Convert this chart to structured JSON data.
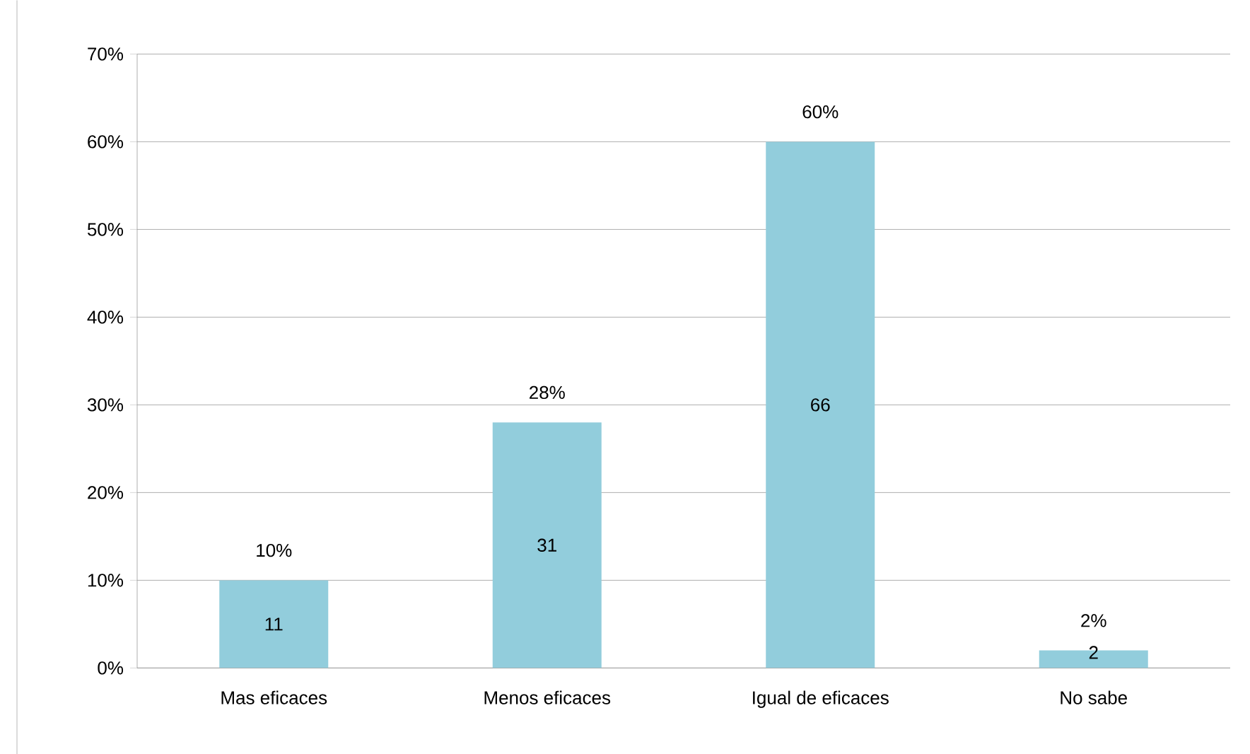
{
  "chart_data": {
    "type": "bar",
    "categories": [
      "Mas eficaces",
      "Menos eficaces",
      "Igual de eficaces",
      "No sabe"
    ],
    "values": [
      10,
      28,
      60,
      2
    ],
    "color": "#92cddc",
    "value_labels": [
      "10%",
      "28%",
      "60%",
      "2%"
    ],
    "ylim": [
      0,
      70
    ],
    "yticks": [
      {
        "value": 0,
        "label": "0%"
      },
      {
        "value": 10,
        "label": "10%"
      },
      {
        "value": 20,
        "label": "20%"
      },
      {
        "value": 30,
        "label": "30%"
      },
      {
        "value": 40,
        "label": "40%"
      },
      {
        "value": 50,
        "label": "50%"
      },
      {
        "value": 60,
        "label": "60%"
      },
      {
        "value": 70,
        "label": "70%"
      }
    ],
    "grid": "y",
    "annotations": [
      "11",
      "31",
      "66",
      "2"
    ]
  }
}
